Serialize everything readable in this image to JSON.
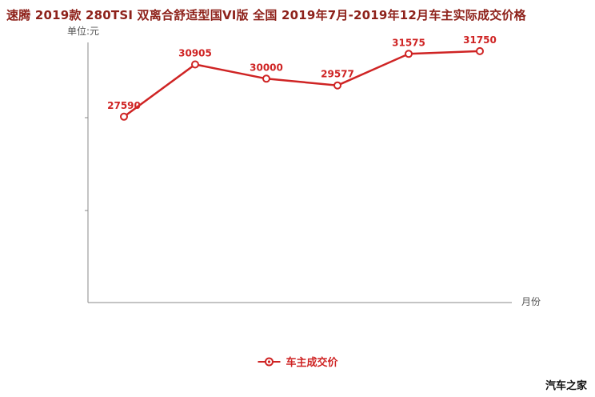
{
  "title": "速腾 2019款 280TSI 双离合舒适型国VI版 全国 2019年7月-2019年12月车主实际成交价格",
  "axis": {
    "y_unit_label": "单位:元",
    "x_axis_label": "月份"
  },
  "legend": {
    "label": "车主成交价"
  },
  "watermark": "汽车之家",
  "colors": {
    "line": "#cf2424",
    "title": "#8e221b",
    "axis": "#8a8a8a",
    "text": "#555555",
    "watermark": "#111111",
    "marker_fill": "#ffffff"
  },
  "chart_data": {
    "type": "line",
    "n_points": 6,
    "series": [
      {
        "name": "车主成交价",
        "values": [
          27590,
          30905,
          30000,
          29577,
          31575,
          31750
        ]
      }
    ],
    "point_labels": [
      "27590",
      "30905",
      "30000",
      "29577",
      "31575",
      "31750"
    ],
    "title": "速腾 2019款 280TSI 双离合舒适型国VI版 全国 2019年7月-2019年12月车主实际成交价格",
    "xlabel": "月份",
    "ylabel": "单位:元",
    "ylim": [
      15800,
      32200
    ],
    "grid": false,
    "x_tick_labels_shown": false,
    "y_tick_labels_shown": false,
    "legend_position": "bottom-center"
  }
}
